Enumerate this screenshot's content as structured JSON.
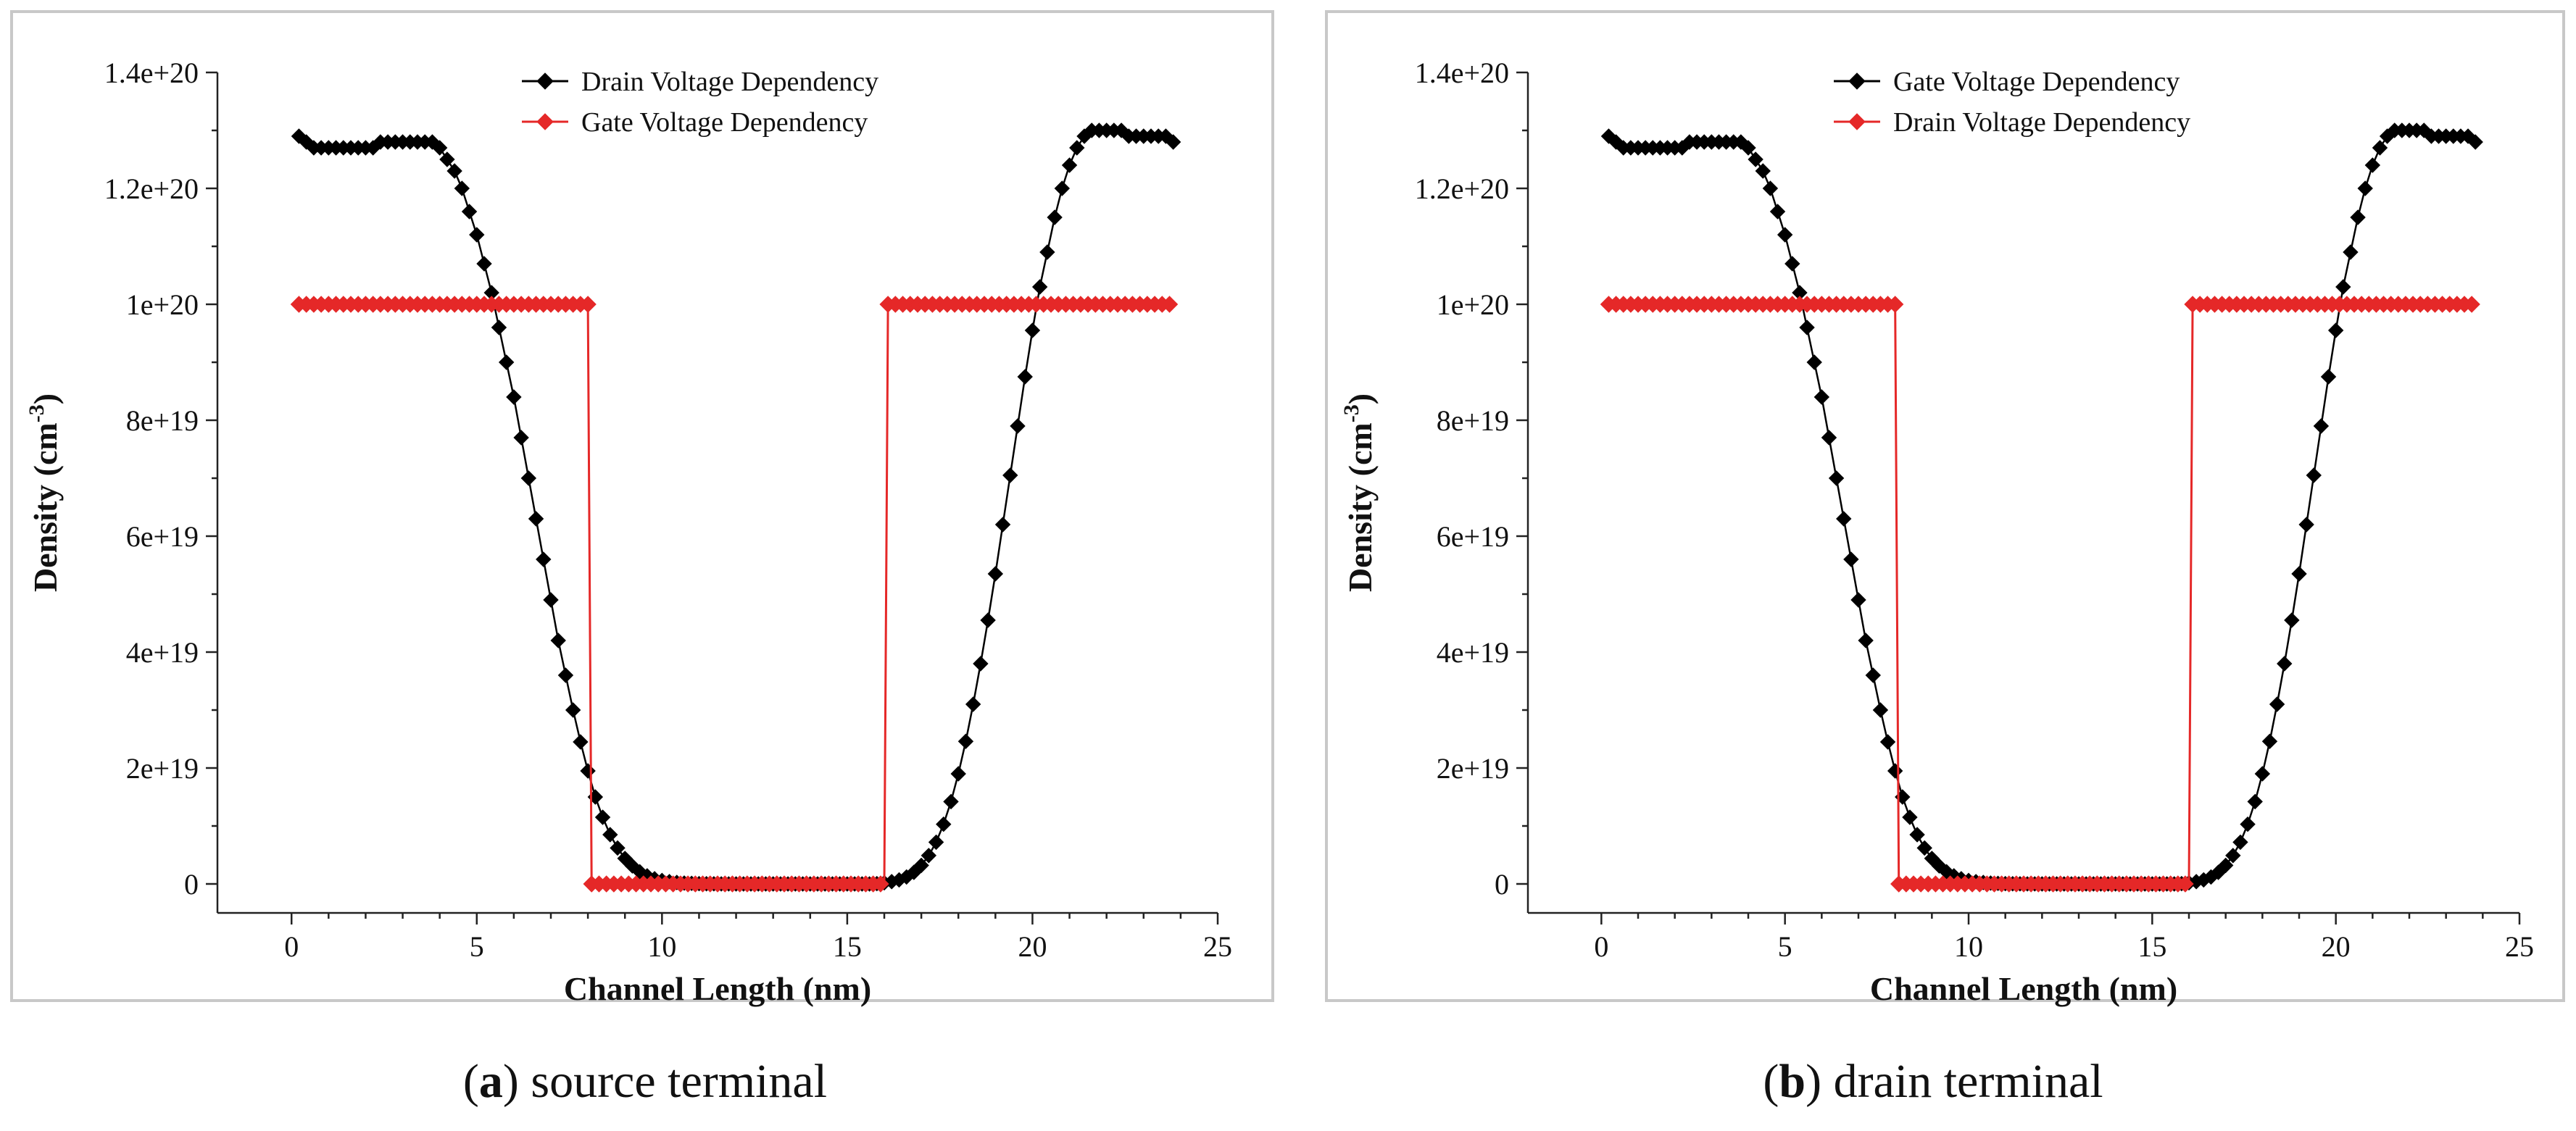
{
  "chart_data": [
    {
      "type": "line",
      "panel_letter": "a",
      "caption": "source terminal",
      "xlabel": "Channel Length (nm)",
      "ylabel_main": "Density (cm",
      "ylabel_sup": "-3",
      "ylabel_close": ")",
      "xlim": [
        -2,
        25
      ],
      "ylim": [
        -5e+18,
        1.4e+20
      ],
      "xticks": [
        0,
        5,
        10,
        15,
        20,
        25
      ],
      "xtick_labels": [
        "0",
        "5",
        "10",
        "15",
        "20",
        "25"
      ],
      "yticks": [
        0,
        2e+19,
        4e+19,
        6e+19,
        8e+19,
        1e+20,
        1.2e+20,
        1.4e+20
      ],
      "ytick_labels": [
        "0",
        "2e+19",
        "4e+19",
        "6e+19",
        "8e+19",
        "1e+20",
        "1.2e+20",
        "1.4e+20"
      ],
      "legend": [
        "Drain Voltage Dependency",
        "Gate Voltage Dependency"
      ],
      "series": [
        {
          "name": "Drain Voltage Dependency",
          "color": "#000000",
          "x": [
            0.2,
            0.4,
            0.6,
            0.8,
            1.0,
            1.2,
            1.4,
            1.6,
            1.8,
            2.0,
            2.2,
            2.4,
            2.6,
            2.8,
            3.0,
            3.2,
            3.4,
            3.6,
            3.8,
            4.0,
            4.2,
            4.4,
            4.6,
            4.8,
            5.0,
            5.2,
            5.4,
            5.6,
            5.8,
            6.0,
            6.2,
            6.4,
            6.6,
            6.8,
            7.0,
            7.2,
            7.4,
            7.6,
            7.8,
            8.0,
            8.2,
            8.4,
            8.6,
            8.8,
            9.0,
            9.2,
            9.4,
            9.6,
            9.8,
            10.0,
            10.2,
            10.4,
            10.6,
            10.8,
            11.0,
            11.2,
            11.4,
            11.6,
            11.8,
            12.0,
            12.2,
            12.4,
            12.6,
            12.8,
            13.0,
            13.2,
            13.4,
            13.6,
            13.8,
            14.0,
            14.2,
            14.4,
            14.6,
            14.8,
            15.0,
            15.2,
            15.4,
            15.6,
            15.8,
            16.0,
            16.2,
            16.4,
            16.6,
            16.8,
            17.0,
            17.2,
            17.4,
            17.6,
            17.8,
            18.0,
            18.2,
            18.4,
            18.6,
            18.8,
            19.0,
            19.2,
            19.4,
            19.6,
            19.8,
            20.0,
            20.2,
            20.4,
            20.6,
            20.8,
            21.0,
            21.2,
            21.4,
            21.6,
            21.8,
            22.0,
            22.2,
            22.4,
            22.6,
            22.8,
            23.0,
            23.2,
            23.4,
            23.6,
            23.8
          ],
          "y": [
            1.29e+20,
            1.28e+20,
            1.27e+20,
            1.27e+20,
            1.27e+20,
            1.27e+20,
            1.27e+20,
            1.27e+20,
            1.27e+20,
            1.27e+20,
            1.27e+20,
            1.28e+20,
            1.28e+20,
            1.28e+20,
            1.28e+20,
            1.28e+20,
            1.28e+20,
            1.28e+20,
            1.28e+20,
            1.27e+20,
            1.25e+20,
            1.23e+20,
            1.2e+20,
            1.16e+20,
            1.12e+20,
            1.07e+20,
            1.02e+20,
            9.6e+19,
            9e+19,
            8.4e+19,
            7.7e+19,
            7e+19,
            6.3e+19,
            5.6e+19,
            4.9e+19,
            4.2e+19,
            3.6e+19,
            3e+19,
            2.45e+19,
            1.95e+19,
            1.5e+19,
            1.15e+19,
            8.5e+18,
            6.2e+18,
            4.4e+18,
            3.1e+18,
            2.1e+18,
            1.4e+18,
            9e+17,
            6e+17,
            4e+17,
            2.5e+17,
            1.5e+17,
            1e+17,
            5e+16,
            3e+16,
            2e+16,
            1e+16,
            5000000000000000.0,
            2000000000000000.0,
            1000000000000000.0,
            1000000000000000.0,
            1000000000000000.0,
            1000000000000000.0,
            1000000000000000.0,
            1000000000000000.0,
            1000000000000000.0,
            1000000000000000.0,
            1000000000000000.0,
            1000000000000000.0,
            1000000000000000.0,
            1000000000000000.0,
            1000000000000000.0,
            1000000000000000.0,
            1000000000000000.0,
            1000000000000000.0,
            1000000000000000.0,
            1000000000000000.0,
            5e+16,
            2e+17,
            4e+17,
            7e+17,
            1.2e+18,
            2e+18,
            3.2e+18,
            4.9e+18,
            7.2e+18,
            1.03e+19,
            1.42e+19,
            1.9e+19,
            2.46e+19,
            3.1e+19,
            3.8e+19,
            4.55e+19,
            5.35e+19,
            6.2e+19,
            7.05e+19,
            7.9e+19,
            8.75e+19,
            9.55e+19,
            1.03e+20,
            1.09e+20,
            1.15e+20,
            1.2e+20,
            1.24e+20,
            1.27e+20,
            1.29e+20,
            1.3e+20,
            1.3e+20,
            1.3e+20,
            1.3e+20,
            1.3e+20,
            1.29e+20,
            1.29e+20,
            1.29e+20,
            1.29e+20,
            1.29e+20,
            1.29e+20,
            1.28e+20
          ]
        },
        {
          "name": "Gate Voltage Dependency",
          "color": "#e52828",
          "x": [
            0.2,
            8.0,
            8.1,
            16.0,
            16.1,
            23.8
          ],
          "y": [
            1e+20,
            1e+20,
            0,
            0,
            1e+20,
            1e+20
          ],
          "marker_spacing": 0.2
        }
      ]
    },
    {
      "type": "line",
      "panel_letter": "b",
      "caption": "drain terminal",
      "xlabel": "Channel Length (nm)",
      "ylabel_main": "Density (cm",
      "ylabel_sup": "-3",
      "ylabel_close": ")",
      "xlim": [
        -2,
        25
      ],
      "ylim": [
        -5e+18,
        1.4e+20
      ],
      "xticks": [
        0,
        5,
        10,
        15,
        20,
        25
      ],
      "xtick_labels": [
        "0",
        "5",
        "10",
        "15",
        "20",
        "25"
      ],
      "yticks": [
        0,
        2e+19,
        4e+19,
        6e+19,
        8e+19,
        1e+20,
        1.2e+20,
        1.4e+20
      ],
      "ytick_labels": [
        "0",
        "2e+19",
        "4e+19",
        "6e+19",
        "8e+19",
        "1e+20",
        "1.2e+20",
        "1.4e+20"
      ],
      "legend": [
        "Gate Voltage Dependency",
        "Drain Voltage Dependency"
      ],
      "series": [
        {
          "name": "Gate Voltage Dependency",
          "color": "#000000",
          "x": [
            0.2,
            0.4,
            0.6,
            0.8,
            1.0,
            1.2,
            1.4,
            1.6,
            1.8,
            2.0,
            2.2,
            2.4,
            2.6,
            2.8,
            3.0,
            3.2,
            3.4,
            3.6,
            3.8,
            4.0,
            4.2,
            4.4,
            4.6,
            4.8,
            5.0,
            5.2,
            5.4,
            5.6,
            5.8,
            6.0,
            6.2,
            6.4,
            6.6,
            6.8,
            7.0,
            7.2,
            7.4,
            7.6,
            7.8,
            8.0,
            8.2,
            8.4,
            8.6,
            8.8,
            9.0,
            9.2,
            9.4,
            9.6,
            9.8,
            10.0,
            10.2,
            10.4,
            10.6,
            10.8,
            11.0,
            11.2,
            11.4,
            11.6,
            11.8,
            12.0,
            12.2,
            12.4,
            12.6,
            12.8,
            13.0,
            13.2,
            13.4,
            13.6,
            13.8,
            14.0,
            14.2,
            14.4,
            14.6,
            14.8,
            15.0,
            15.2,
            15.4,
            15.6,
            15.8,
            16.0,
            16.2,
            16.4,
            16.6,
            16.8,
            17.0,
            17.2,
            17.4,
            17.6,
            17.8,
            18.0,
            18.2,
            18.4,
            18.6,
            18.8,
            19.0,
            19.2,
            19.4,
            19.6,
            19.8,
            20.0,
            20.2,
            20.4,
            20.6,
            20.8,
            21.0,
            21.2,
            21.4,
            21.6,
            21.8,
            22.0,
            22.2,
            22.4,
            22.6,
            22.8,
            23.0,
            23.2,
            23.4,
            23.6,
            23.8
          ],
          "y": [
            1.29e+20,
            1.28e+20,
            1.27e+20,
            1.27e+20,
            1.27e+20,
            1.27e+20,
            1.27e+20,
            1.27e+20,
            1.27e+20,
            1.27e+20,
            1.27e+20,
            1.28e+20,
            1.28e+20,
            1.28e+20,
            1.28e+20,
            1.28e+20,
            1.28e+20,
            1.28e+20,
            1.28e+20,
            1.27e+20,
            1.25e+20,
            1.23e+20,
            1.2e+20,
            1.16e+20,
            1.12e+20,
            1.07e+20,
            1.02e+20,
            9.6e+19,
            9e+19,
            8.4e+19,
            7.7e+19,
            7e+19,
            6.3e+19,
            5.6e+19,
            4.9e+19,
            4.2e+19,
            3.6e+19,
            3e+19,
            2.45e+19,
            1.95e+19,
            1.5e+19,
            1.15e+19,
            8.5e+18,
            6.2e+18,
            4.4e+18,
            3.1e+18,
            2.1e+18,
            1.4e+18,
            9e+17,
            6e+17,
            4e+17,
            2.5e+17,
            1.5e+17,
            1e+17,
            5e+16,
            3e+16,
            2e+16,
            1e+16,
            5000000000000000.0,
            2000000000000000.0,
            1000000000000000.0,
            1000000000000000.0,
            1000000000000000.0,
            1000000000000000.0,
            1000000000000000.0,
            1000000000000000.0,
            1000000000000000.0,
            1000000000000000.0,
            1000000000000000.0,
            1000000000000000.0,
            1000000000000000.0,
            1000000000000000.0,
            1000000000000000.0,
            1000000000000000.0,
            1000000000000000.0,
            1000000000000000.0,
            1000000000000000.0,
            1000000000000000.0,
            5e+16,
            2e+17,
            4e+17,
            7e+17,
            1.2e+18,
            2e+18,
            3.2e+18,
            4.9e+18,
            7.2e+18,
            1.03e+19,
            1.42e+19,
            1.9e+19,
            2.46e+19,
            3.1e+19,
            3.8e+19,
            4.55e+19,
            5.35e+19,
            6.2e+19,
            7.05e+19,
            7.9e+19,
            8.75e+19,
            9.55e+19,
            1.03e+20,
            1.09e+20,
            1.15e+20,
            1.2e+20,
            1.24e+20,
            1.27e+20,
            1.29e+20,
            1.3e+20,
            1.3e+20,
            1.3e+20,
            1.3e+20,
            1.3e+20,
            1.29e+20,
            1.29e+20,
            1.29e+20,
            1.29e+20,
            1.29e+20,
            1.29e+20,
            1.28e+20
          ]
        },
        {
          "name": "Drain Voltage Dependency",
          "color": "#e52828",
          "x": [
            0.2,
            8.0,
            8.1,
            16.0,
            16.1,
            23.8
          ],
          "y": [
            1e+20,
            1e+20,
            0,
            0,
            1e+20,
            1e+20
          ],
          "marker_spacing": 0.2
        }
      ]
    }
  ]
}
